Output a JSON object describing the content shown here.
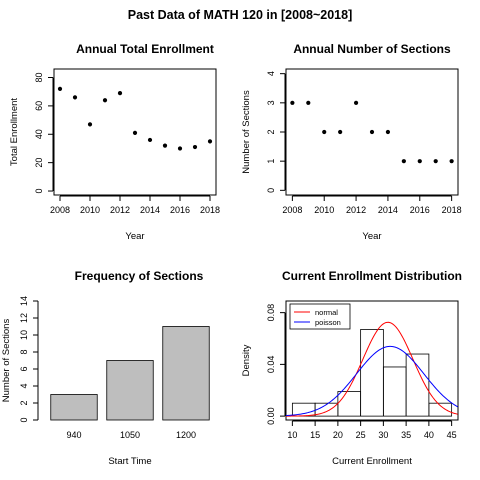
{
  "page": {
    "title": "Past Data of MATH 120 in [2008~2018]"
  },
  "chart_data": [
    {
      "type": "scatter",
      "title": "Annual Total Enrollment",
      "xlabel": "Year",
      "ylabel": "Total Enrollment",
      "x": [
        2008,
        2009,
        2010,
        2011,
        2012,
        2013,
        2014,
        2015,
        2016,
        2017,
        2018
      ],
      "y": [
        72,
        66,
        47,
        64,
        69,
        41,
        36,
        32,
        30,
        31,
        35
      ],
      "xlim": [
        2007.6,
        2018.4
      ],
      "ylim": [
        -2.8,
        86
      ],
      "xticks": [
        2008,
        2010,
        2012,
        2014,
        2016,
        2018
      ],
      "yticks": [
        0,
        20,
        40,
        60,
        80
      ],
      "xtick_labels": [
        "2008",
        "2010",
        "2012",
        "2014",
        "2016",
        "2018"
      ],
      "ytick_labels": [
        "0",
        "20",
        "40",
        "60",
        "80"
      ],
      "grid": false
    },
    {
      "type": "scatter",
      "title": "Annual Number of Sections",
      "xlabel": "Year",
      "ylabel": "Number of Sections",
      "x": [
        2008,
        2009,
        2010,
        2011,
        2012,
        2013,
        2014,
        2015,
        2016,
        2017,
        2018
      ],
      "y": [
        3,
        3,
        2,
        2,
        3,
        2,
        2,
        1,
        1,
        1,
        1
      ],
      "xlim": [
        2007.6,
        2018.4
      ],
      "ylim": [
        -0.16,
        4.16
      ],
      "xticks": [
        2008,
        2010,
        2012,
        2014,
        2016,
        2018
      ],
      "yticks": [
        0,
        1,
        2,
        3,
        4
      ],
      "xtick_labels": [
        "2008",
        "2010",
        "2012",
        "2014",
        "2016",
        "2018"
      ],
      "ytick_labels": [
        "0",
        "1",
        "2",
        "3",
        "4"
      ],
      "grid": false
    },
    {
      "type": "bar",
      "title": "Frequency of Sections",
      "xlabel": "Start Time",
      "ylabel": "Number of Sections",
      "categories": [
        "940",
        "1050",
        "1200"
      ],
      "values": [
        3,
        7,
        11
      ],
      "ylim": [
        0,
        14
      ],
      "yticks": [
        0,
        2,
        4,
        6,
        8,
        10,
        12,
        14
      ],
      "ytick_labels": [
        "0",
        "2",
        "4",
        "6",
        "8",
        "10",
        "12",
        "14"
      ],
      "bar_color": "#bebebe",
      "grid": false
    },
    {
      "type": "histogram",
      "title": "Current Enrollment Distribution",
      "xlabel": "Current Enrollment",
      "ylabel": "Density",
      "bins": [
        {
          "from": 10,
          "to": 15,
          "density": 0.01
        },
        {
          "from": 15,
          "to": 20,
          "density": 0.01
        },
        {
          "from": 20,
          "to": 25,
          "density": 0.019
        },
        {
          "from": 25,
          "to": 30,
          "density": 0.067
        },
        {
          "from": 30,
          "to": 35,
          "density": 0.038
        },
        {
          "from": 35,
          "to": 40,
          "density": 0.048
        },
        {
          "from": 40,
          "to": 45,
          "density": 0.01
        }
      ],
      "xlim": [
        8.6,
        46.4
      ],
      "ylim": [
        -0.003,
        0.089
      ],
      "xticks": [
        10,
        15,
        20,
        25,
        30,
        35,
        40,
        45
      ],
      "yticks": [
        0.0,
        0.04,
        0.08
      ],
      "xtick_labels": [
        "10",
        "15",
        "20",
        "25",
        "30",
        "35",
        "40",
        "45"
      ],
      "ytick_labels": [
        "0.00",
        "0.04",
        "0.08"
      ],
      "series": [
        {
          "name": "normal",
          "color": "#ff0000",
          "mean": 31,
          "sd": 5.5
        },
        {
          "name": "poisson",
          "color": "#0000ff",
          "mean": 31.5,
          "sd": 7.4
        }
      ],
      "legend": "top-left",
      "grid": false
    }
  ]
}
